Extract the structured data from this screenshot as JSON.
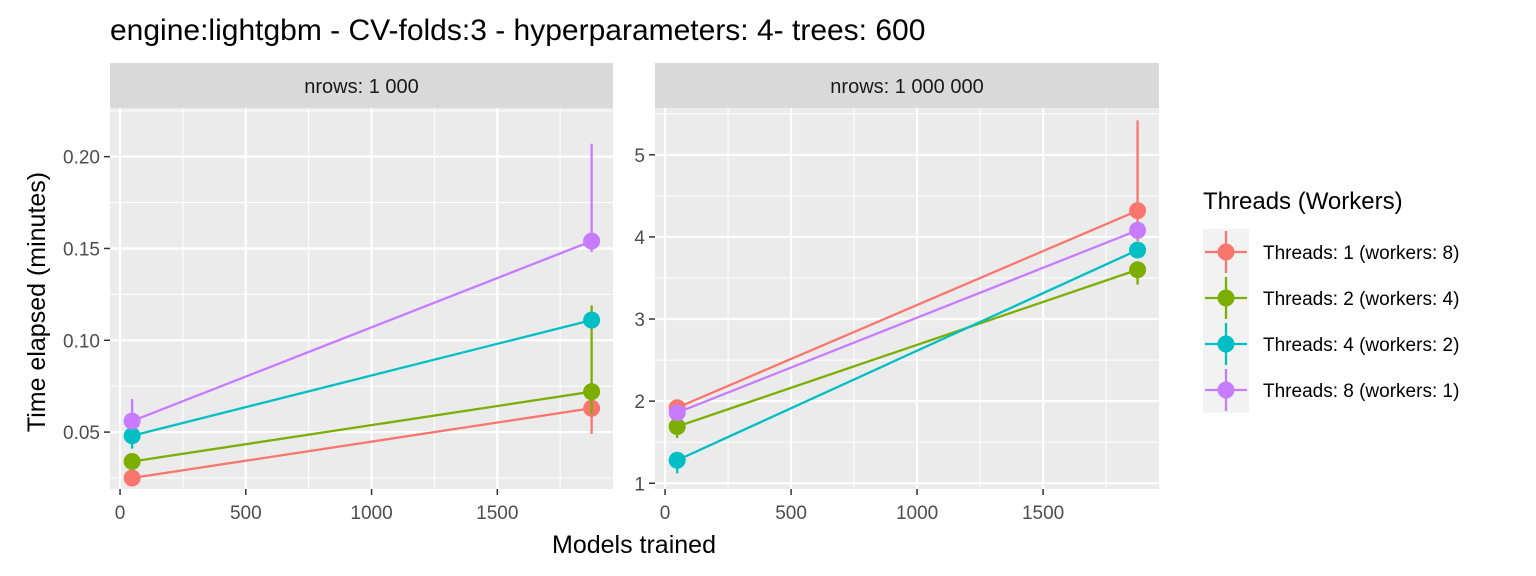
{
  "title": "engine:lightgbm - CV-folds:3 - hyperparameters: 4- trees: 600",
  "chart_data": {
    "type": "line",
    "title": "engine:lightgbm - CV-folds:3 - hyperparameters: 4- trees: 600",
    "xlabel": "Models trained",
    "ylabel": "Time elapsed (minutes)",
    "legend": {
      "title": "Threads (Workers)",
      "placement": "right"
    },
    "grid": true,
    "colors": [
      "#F8766D",
      "#7CAE00",
      "#00BFC4",
      "#C77CFF"
    ],
    "series_names": [
      "Threads: 1 (workers: 8)",
      "Threads: 2 (workers: 4)",
      "Threads: 4 (workers: 2)",
      "Threads: 8 (workers: 1)"
    ],
    "panels": [
      {
        "strip": "nrows: 1 000",
        "xlim": [
          -40,
          1960
        ],
        "ylim": [
          0.019,
          0.2265
        ],
        "xticks": [
          0,
          500,
          1000,
          1500
        ],
        "xtick_labels": [
          "0",
          "500",
          "1000",
          "1500"
        ],
        "yticks": [
          0.05,
          0.1,
          0.15,
          0.2
        ],
        "ytick_labels": [
          "0.05",
          "0.10",
          "0.15",
          "0.20"
        ],
        "series": [
          {
            "name": "Threads: 1 (workers: 8)",
            "x": [
              48,
              1875
            ],
            "y": [
              0.025,
              0.063
            ],
            "err_low": [
              0.025,
              0.049
            ],
            "err_high": [
              0.025,
              0.064
            ]
          },
          {
            "name": "Threads: 2 (workers: 4)",
            "x": [
              48,
              1875
            ],
            "y": [
              0.034,
              0.072
            ],
            "err_low": [
              0.03,
              0.06
            ],
            "err_high": [
              0.038,
              0.119
            ]
          },
          {
            "name": "Threads: 4 (workers: 2)",
            "x": [
              48,
              1875
            ],
            "y": [
              0.048,
              0.111
            ],
            "err_low": [
              0.041,
              0.11
            ],
            "err_high": [
              0.05,
              0.112
            ]
          },
          {
            "name": "Threads: 8 (workers: 1)",
            "x": [
              48,
              1875
            ],
            "y": [
              0.056,
              0.154
            ],
            "err_low": [
              0.054,
              0.148
            ],
            "err_high": [
              0.068,
              0.207
            ]
          }
        ]
      },
      {
        "strip": "nrows: 1 000 000",
        "xlim": [
          -40,
          1960
        ],
        "ylim": [
          0.93,
          5.57
        ],
        "xticks": [
          0,
          500,
          1000,
          1500
        ],
        "xtick_labels": [
          "0",
          "500",
          "1000",
          "1500"
        ],
        "yticks": [
          1,
          2,
          3,
          4,
          5
        ],
        "ytick_labels": [
          "1",
          "2",
          "3",
          "4",
          "5"
        ],
        "series": [
          {
            "name": "Threads: 1 (workers: 8)",
            "x": [
              48,
              1875
            ],
            "y": [
              1.92,
              4.32
            ],
            "err_low": [
              1.88,
              3.95
            ],
            "err_high": [
              1.95,
              5.42
            ]
          },
          {
            "name": "Threads: 2 (workers: 4)",
            "x": [
              48,
              1875
            ],
            "y": [
              1.69,
              3.6
            ],
            "err_low": [
              1.55,
              3.42
            ],
            "err_high": [
              1.8,
              3.7
            ]
          },
          {
            "name": "Threads: 4 (workers: 2)",
            "x": [
              48,
              1875
            ],
            "y": [
              1.28,
              3.84
            ],
            "err_low": [
              1.12,
              3.8
            ],
            "err_high": [
              1.32,
              3.88
            ]
          },
          {
            "name": "Threads: 8 (workers: 1)",
            "x": [
              48,
              1875
            ],
            "y": [
              1.86,
              4.08
            ],
            "err_low": [
              1.82,
              4.02
            ],
            "err_high": [
              1.93,
              4.15
            ]
          }
        ]
      }
    ]
  }
}
